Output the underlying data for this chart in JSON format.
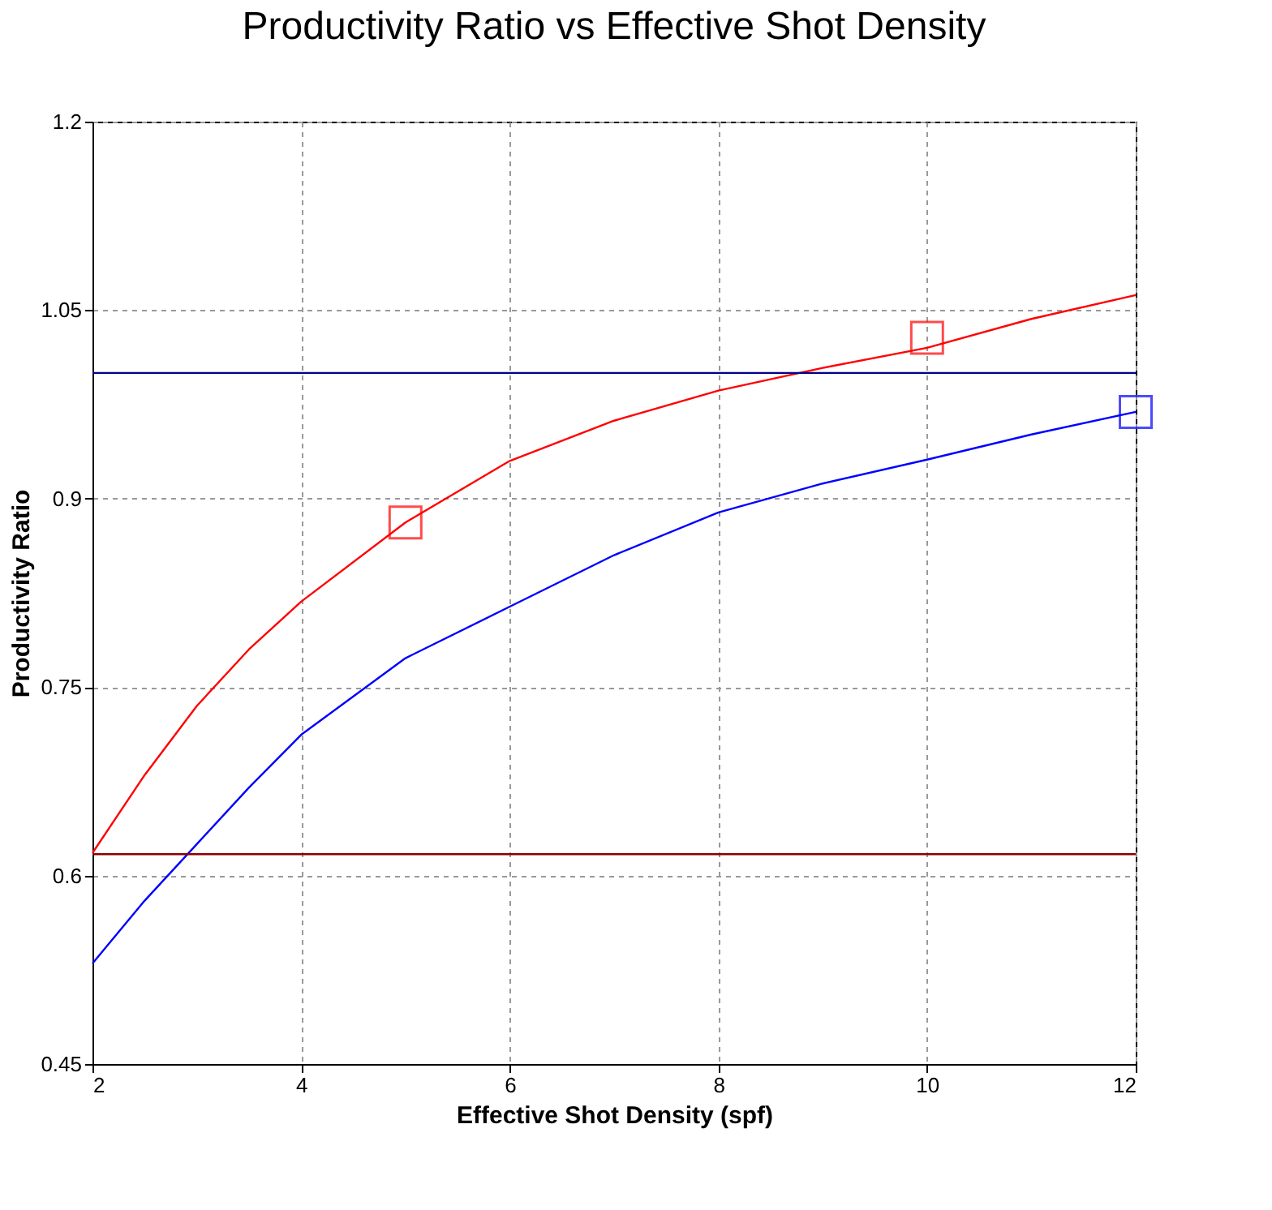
{
  "chart_data": {
    "type": "line",
    "title": "Productivity Ratio vs Effective Shot Density",
    "xlabel": "Effective Shot Density (spf)",
    "ylabel": "Productivity Ratio",
    "xlim": [
      2,
      12
    ],
    "xticks": [
      2,
      4,
      6,
      8,
      10,
      12
    ],
    "ylim": [
      0.45,
      1.2
    ],
    "yticks": [
      0.45,
      0.6,
      0.75,
      0.9,
      1.05,
      1.2
    ],
    "grid": true,
    "series": [
      {
        "color": "#ff0000",
        "x": [
          2,
          2.5,
          3,
          3.5,
          4,
          5,
          6,
          7,
          8,
          9,
          10,
          11,
          12
        ],
        "values": [
          0.618,
          0.68,
          0.735,
          0.78,
          0.818,
          0.881,
          0.93,
          0.962,
          0.986,
          1.004,
          1.02,
          1.043,
          1.062
        ],
        "marker": "none"
      },
      {
        "color": "#0000ff",
        "x": [
          2,
          2.5,
          3,
          3.5,
          4,
          5,
          6,
          7,
          8,
          9,
          10,
          11,
          12
        ],
        "values": [
          0.53,
          0.58,
          0.625,
          0.67,
          0.712,
          0.773,
          0.814,
          0.855,
          0.889,
          0.912,
          0.931,
          0.951,
          0.969
        ],
        "marker": "none"
      },
      {
        "type": "scatter",
        "color": "#ff0000",
        "x": [
          5
        ],
        "values": [
          0.881
        ],
        "marker": "square"
      },
      {
        "type": "scatter",
        "color": "#ff0000",
        "x": [
          10
        ],
        "values": [
          1.028
        ],
        "marker": "square"
      },
      {
        "type": "scatter",
        "color": "#0000ff",
        "x": [
          12
        ],
        "values": [
          0.969
        ],
        "marker": "square"
      }
    ],
    "ref_lines": [
      {
        "axis": "y",
        "value": 1.0,
        "color": "#00008b"
      },
      {
        "axis": "y",
        "value": 0.617,
        "color": "#8b0000"
      }
    ]
  }
}
